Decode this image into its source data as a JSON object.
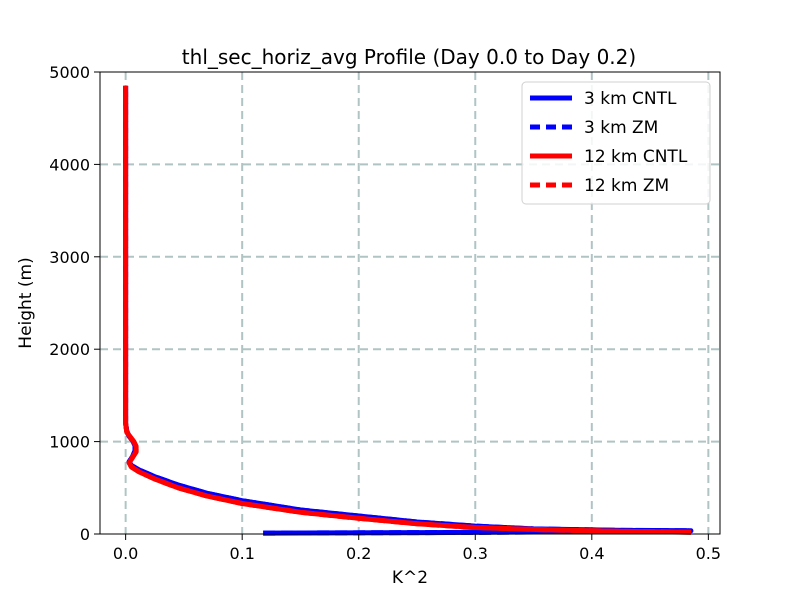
{
  "chart_data": {
    "type": "line",
    "title": "thl_sec_horiz_avg Profile (Day 0.0 to Day 0.2)",
    "xlabel": "K^2",
    "ylabel": "Height (m)",
    "xlim": [
      -0.022,
      0.51
    ],
    "ylim": [
      0,
      5000
    ],
    "xticks": [
      0.0,
      0.1,
      0.2,
      0.3,
      0.4,
      0.5
    ],
    "xtick_labels": [
      "0.0",
      "0.1",
      "0.2",
      "0.3",
      "0.4",
      "0.5"
    ],
    "yticks": [
      0,
      1000,
      2000,
      3000,
      4000,
      5000
    ],
    "ytick_labels": [
      "0",
      "1000",
      "2000",
      "3000",
      "4000",
      "5000"
    ],
    "grid": true,
    "legend_position": "top-right",
    "series": [
      {
        "name": "3 km CNTL",
        "color": "#0000ff",
        "dash": "solid",
        "points": [
          [
            0.118,
            10
          ],
          [
            0.26,
            15
          ],
          [
            0.4,
            25
          ],
          [
            0.48,
            30
          ],
          [
            0.485,
            35
          ],
          [
            0.42,
            40
          ],
          [
            0.35,
            55
          ],
          [
            0.3,
            85
          ],
          [
            0.25,
            130
          ],
          [
            0.2,
            195
          ],
          [
            0.15,
            260
          ],
          [
            0.1,
            360
          ],
          [
            0.07,
            440
          ],
          [
            0.045,
            530
          ],
          [
            0.025,
            620
          ],
          [
            0.012,
            690
          ],
          [
            0.005,
            740
          ],
          [
            0.003,
            780
          ],
          [
            0.006,
            840
          ],
          [
            0.008,
            900
          ],
          [
            0.008,
            960
          ],
          [
            0.006,
            1010
          ],
          [
            0.003,
            1060
          ],
          [
            0.001,
            1110
          ],
          [
            0.0,
            1200
          ],
          [
            0.0,
            2000
          ],
          [
            0.0,
            3000
          ],
          [
            0.0,
            4000
          ],
          [
            0.0,
            4850
          ]
        ]
      },
      {
        "name": "3 km ZM",
        "color": "#0000ff",
        "dash": "dashed",
        "points": [
          [
            0.118,
            10
          ],
          [
            0.26,
            15
          ],
          [
            0.4,
            25
          ],
          [
            0.48,
            30
          ],
          [
            0.485,
            35
          ],
          [
            0.42,
            40
          ],
          [
            0.35,
            55
          ],
          [
            0.3,
            85
          ],
          [
            0.25,
            130
          ],
          [
            0.2,
            195
          ],
          [
            0.15,
            260
          ],
          [
            0.1,
            360
          ],
          [
            0.07,
            440
          ],
          [
            0.045,
            530
          ],
          [
            0.025,
            620
          ],
          [
            0.012,
            690
          ],
          [
            0.005,
            740
          ],
          [
            0.003,
            780
          ],
          [
            0.006,
            840
          ],
          [
            0.008,
            900
          ],
          [
            0.008,
            960
          ],
          [
            0.006,
            1010
          ],
          [
            0.003,
            1060
          ],
          [
            0.001,
            1110
          ],
          [
            0.0,
            1200
          ],
          [
            0.0,
            2000
          ],
          [
            0.0,
            3000
          ],
          [
            0.0,
            4000
          ],
          [
            0.0,
            4850
          ]
        ]
      },
      {
        "name": "12 km CNTL",
        "color": "#ff0000",
        "dash": "solid",
        "points": [
          [
            0.485,
            20
          ],
          [
            0.42,
            30
          ],
          [
            0.36,
            45
          ],
          [
            0.3,
            70
          ],
          [
            0.25,
            110
          ],
          [
            0.2,
            170
          ],
          [
            0.15,
            235
          ],
          [
            0.1,
            330
          ],
          [
            0.07,
            410
          ],
          [
            0.045,
            500
          ],
          [
            0.025,
            595
          ],
          [
            0.012,
            670
          ],
          [
            0.005,
            725
          ],
          [
            0.003,
            770
          ],
          [
            0.006,
            830
          ],
          [
            0.009,
            890
          ],
          [
            0.009,
            950
          ],
          [
            0.007,
            1000
          ],
          [
            0.004,
            1050
          ],
          [
            0.001,
            1100
          ],
          [
            0.0,
            1200
          ],
          [
            0.0,
            2000
          ],
          [
            0.0,
            3000
          ],
          [
            0.0,
            4000
          ],
          [
            0.0,
            4850
          ]
        ]
      },
      {
        "name": "12 km ZM",
        "color": "#ff0000",
        "dash": "dashed",
        "points": [
          [
            0.485,
            20
          ],
          [
            0.42,
            30
          ],
          [
            0.36,
            45
          ],
          [
            0.3,
            70
          ],
          [
            0.25,
            110
          ],
          [
            0.2,
            170
          ],
          [
            0.15,
            235
          ],
          [
            0.1,
            330
          ],
          [
            0.07,
            410
          ],
          [
            0.045,
            500
          ],
          [
            0.025,
            595
          ],
          [
            0.012,
            670
          ],
          [
            0.005,
            725
          ],
          [
            0.003,
            770
          ],
          [
            0.006,
            830
          ],
          [
            0.009,
            890
          ],
          [
            0.009,
            950
          ],
          [
            0.007,
            1000
          ],
          [
            0.004,
            1050
          ],
          [
            0.001,
            1100
          ],
          [
            0.0,
            1200
          ],
          [
            0.0,
            2000
          ],
          [
            0.0,
            3000
          ],
          [
            0.0,
            4000
          ],
          [
            0.0,
            4850
          ]
        ]
      }
    ]
  }
}
